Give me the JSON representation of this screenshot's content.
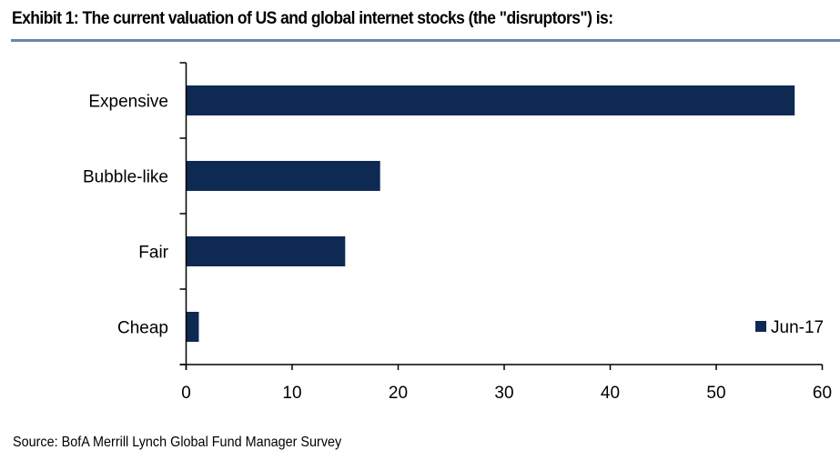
{
  "chart_data": {
    "type": "bar",
    "orientation": "horizontal",
    "title": "Exhibit 1: The current valuation of US and global internet stocks (the \"disruptors\") is:",
    "categories": [
      "Expensive",
      "Bubble-like",
      "Fair",
      "Cheap"
    ],
    "series": [
      {
        "name": "Jun-17",
        "color": "#0f2a52",
        "values": [
          57.4,
          18.3,
          15.0,
          1.2
        ]
      }
    ],
    "xlabel": "",
    "ylabel": "",
    "xlim": [
      0,
      60
    ],
    "xticks": [
      0,
      10,
      20,
      30,
      40,
      50,
      60
    ],
    "grid": false,
    "legend": {
      "position": "bottom-right",
      "entries": [
        "Jun-17"
      ]
    },
    "source": "Source: BofA Merrill Lynch Global Fund Manager Survey"
  },
  "colors": {
    "bar": "#0f2a52",
    "rule": "#6a85a8"
  }
}
